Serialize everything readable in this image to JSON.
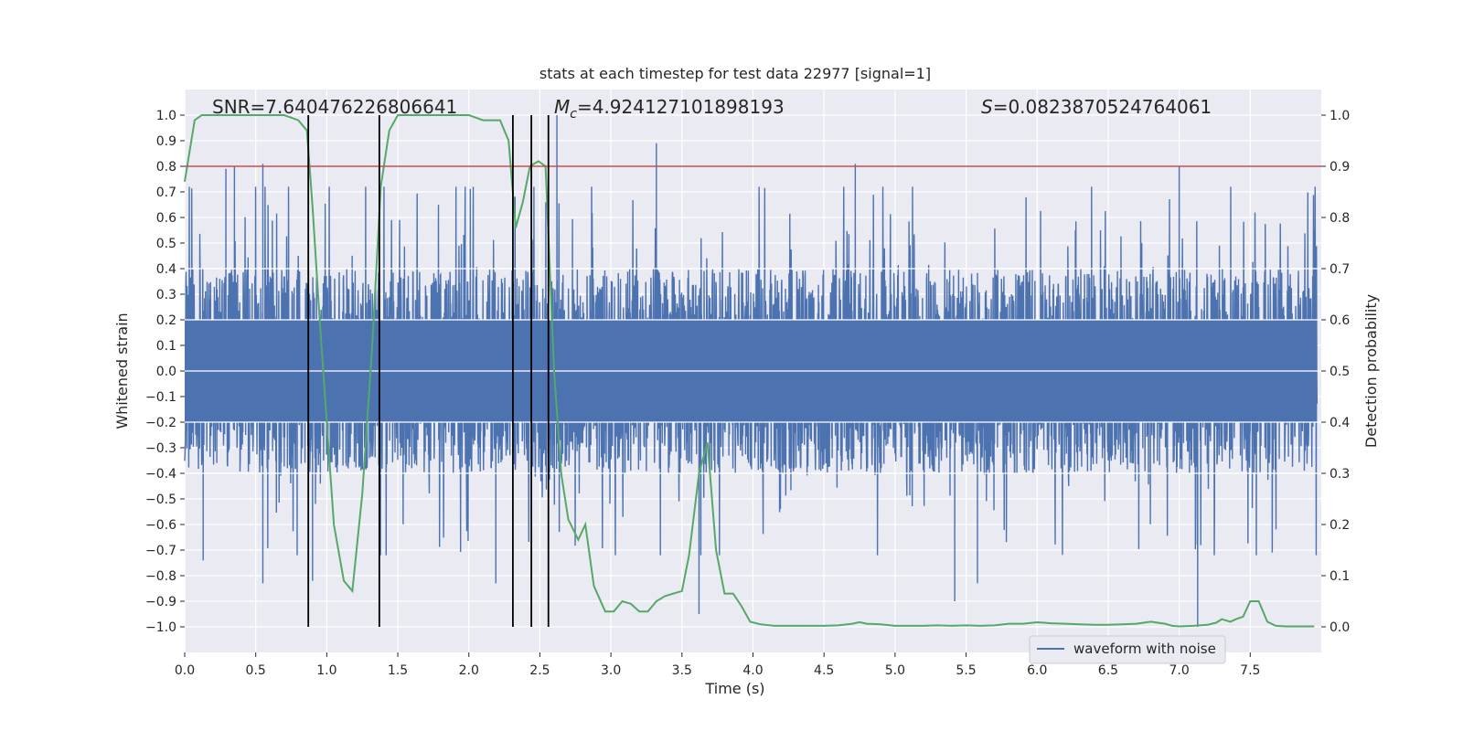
{
  "chart_data": {
    "type": "line",
    "title": "stats at each timestep for test data 22977 [signal=1]",
    "xlabel": "Time (s)",
    "ylabel_left": "Whitened strain",
    "ylabel_right": "Detection probability",
    "xlim": [
      0.0,
      8.0
    ],
    "ylim_left": [
      -1.1,
      1.1
    ],
    "ylim_right": [
      -0.05,
      1.05
    ],
    "x_ticks": [
      "0.0",
      "0.5",
      "1.0",
      "1.5",
      "2.0",
      "2.5",
      "3.0",
      "3.5",
      "4.0",
      "4.5",
      "5.0",
      "5.5",
      "6.0",
      "6.5",
      "7.0",
      "7.5"
    ],
    "x_tick_values": [
      0.0,
      0.5,
      1.0,
      1.5,
      2.0,
      2.5,
      3.0,
      3.5,
      4.0,
      4.5,
      5.0,
      5.5,
      6.0,
      6.5,
      7.0,
      7.5
    ],
    "y_left_ticks": [
      "1.0",
      "0.9",
      "0.8",
      "0.7",
      "0.6",
      "0.5",
      "0.4",
      "0.3",
      "0.2",
      "0.1",
      "0.0",
      "−0.1",
      "−0.2",
      "−0.3",
      "−0.4",
      "−0.5",
      "−0.6",
      "−0.7",
      "−0.8",
      "−0.9",
      "−1.0"
    ],
    "y_left_tick_values": [
      1.0,
      0.9,
      0.8,
      0.7,
      0.6,
      0.5,
      0.4,
      0.3,
      0.2,
      0.1,
      0.0,
      -0.1,
      -0.2,
      -0.3,
      -0.4,
      -0.5,
      -0.6,
      -0.7,
      -0.8,
      -0.9,
      -1.0
    ],
    "y_right_ticks": [
      "1.0",
      "0.9",
      "0.8",
      "0.7",
      "0.6",
      "0.5",
      "0.4",
      "0.3",
      "0.2",
      "0.1",
      "0.0"
    ],
    "y_right_tick_values": [
      1.0,
      0.9,
      0.8,
      0.7,
      0.6,
      0.5,
      0.4,
      0.3,
      0.2,
      0.1,
      0.0
    ],
    "annotations": {
      "snr": "SNR=7.640476226806641",
      "mc_symbol": "M",
      "mc_subscript": "c",
      "mc_value": "=4.924127101898193",
      "s_symbol": "S",
      "s_value": "=0.0823870524764061"
    },
    "threshold": {
      "value": 0.9,
      "axis": "right",
      "color": "#c44e52"
    },
    "vertical_lines": [
      0.87,
      1.37,
      2.31,
      2.44,
      2.56
    ],
    "waveform": {
      "name": "waveform with noise",
      "color": "#4c72b0",
      "envelope_hint": "dense noise approx ±0.3 to ±0.6 with spikes up to ~1.0 at t≈2.6s",
      "spikes": [
        {
          "t": 0.13,
          "v": -0.74
        },
        {
          "t": 0.55,
          "v": -0.83
        },
        {
          "t": 0.9,
          "v": -0.82
        },
        {
          "t": 2.19,
          "v": -0.83
        },
        {
          "t": 2.62,
          "v": 1.0
        },
        {
          "t": 3.62,
          "v": -0.95
        },
        {
          "t": 5.42,
          "v": -0.9
        },
        {
          "t": 5.58,
          "v": -0.83
        },
        {
          "t": 7.13,
          "v": -1.0
        },
        {
          "t": 0.29,
          "v": 0.79
        },
        {
          "t": 0.35,
          "v": 0.8
        },
        {
          "t": 0.55,
          "v": 0.81
        },
        {
          "t": 3.32,
          "v": 0.89
        },
        {
          "t": 4.72,
          "v": 0.81
        },
        {
          "t": 7.0,
          "v": 0.8
        }
      ]
    },
    "probability": {
      "name": "Detection probability",
      "color": "#55a868",
      "x": [
        0.0,
        0.07,
        0.12,
        0.2,
        0.3,
        0.4,
        0.5,
        0.6,
        0.7,
        0.8,
        0.86,
        0.9,
        0.95,
        1.0,
        1.05,
        1.12,
        1.18,
        1.25,
        1.32,
        1.38,
        1.44,
        1.5,
        1.6,
        1.7,
        1.8,
        1.9,
        2.0,
        2.1,
        2.16,
        2.22,
        2.28,
        2.33,
        2.38,
        2.43,
        2.49,
        2.54,
        2.6,
        2.65,
        2.7,
        2.77,
        2.82,
        2.88,
        2.96,
        3.02,
        3.08,
        3.14,
        3.2,
        3.26,
        3.32,
        3.38,
        3.44,
        3.5,
        3.55,
        3.62,
        3.68,
        3.74,
        3.8,
        3.86,
        3.92,
        3.98,
        4.05,
        4.15,
        4.3,
        4.5,
        4.6,
        4.7,
        4.75,
        4.8,
        4.9,
        5.0,
        5.1,
        5.2,
        5.3,
        5.4,
        5.5,
        5.6,
        5.7,
        5.8,
        5.9,
        6.0,
        6.1,
        6.2,
        6.3,
        6.4,
        6.5,
        6.6,
        6.7,
        6.8,
        6.9,
        6.95,
        7.0,
        7.1,
        7.2,
        7.26,
        7.3,
        7.36,
        7.4,
        7.45,
        7.5,
        7.56,
        7.62,
        7.68,
        7.75,
        7.95
      ],
      "y": [
        0.87,
        0.99,
        1.0,
        1.0,
        1.0,
        1.0,
        1.0,
        1.0,
        1.0,
        0.99,
        0.97,
        0.82,
        0.6,
        0.4,
        0.2,
        0.09,
        0.07,
        0.26,
        0.55,
        0.86,
        0.97,
        1.0,
        1.0,
        1.0,
        1.0,
        1.0,
        1.0,
        0.99,
        0.99,
        0.99,
        0.95,
        0.78,
        0.83,
        0.9,
        0.91,
        0.9,
        0.5,
        0.3,
        0.21,
        0.17,
        0.2,
        0.08,
        0.03,
        0.03,
        0.05,
        0.045,
        0.03,
        0.03,
        0.05,
        0.06,
        0.065,
        0.07,
        0.14,
        0.3,
        0.36,
        0.15,
        0.065,
        0.065,
        0.04,
        0.01,
        0.005,
        0.002,
        0.002,
        0.002,
        0.003,
        0.006,
        0.009,
        0.006,
        0.005,
        0.002,
        0.002,
        0.002,
        0.003,
        0.002,
        0.003,
        0.002,
        0.003,
        0.006,
        0.006,
        0.009,
        0.007,
        0.006,
        0.005,
        0.004,
        0.004,
        0.005,
        0.006,
        0.01,
        0.006,
        0.002,
        0.001,
        0.002,
        0.004,
        0.008,
        0.015,
        0.01,
        0.015,
        0.02,
        0.05,
        0.05,
        0.01,
        0.002,
        0.001,
        0.001
      ]
    },
    "legend": {
      "position": "lower-right",
      "label": "waveform with noise"
    }
  }
}
